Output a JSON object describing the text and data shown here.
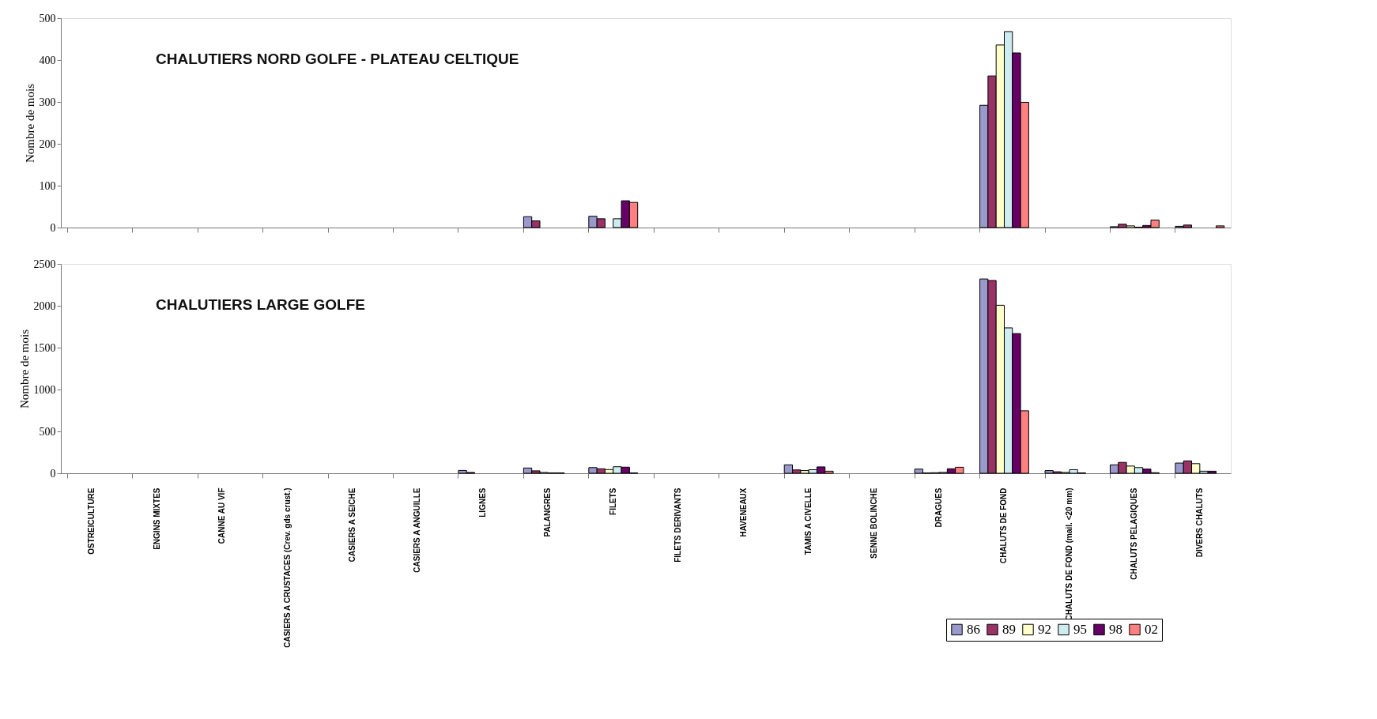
{
  "chart_data": [
    {
      "type": "bar",
      "title": "CHALUTIERS NORD GOLFE - PLATEAU CELTIQUE",
      "ylabel": "Nombre de mois",
      "ylim": [
        0,
        500
      ],
      "yticks": [
        0,
        100,
        200,
        300,
        400,
        500
      ],
      "tick_labels": "y",
      "legend": "bottom right",
      "categories": [
        "OSTREICULTURE",
        "ENGINS MIXTES",
        "CANNE AU VIF",
        "CASIERS A CRUSTACES (Crev. gds crust.)",
        "CASIERS A SEICHE",
        "CASIERS A ANGUILLE",
        "LIGNES",
        "PALANGRES",
        "FILETS",
        "FILETS DERIVANTS",
        "HAVENEAUX",
        "TAMIS A CIVELLE",
        "SENNE BOLINCHE",
        "DRAGUES",
        "CHALUTS DE FOND",
        "CHALUTS DE FOND (mail. <20 mm)",
        "CHALUTS PELAGIQUES",
        "DIVERS CHALUTS"
      ],
      "series": [
        {
          "name": "86",
          "color": "#9999cc",
          "values": [
            null,
            null,
            null,
            null,
            null,
            null,
            null,
            26,
            27,
            null,
            null,
            null,
            null,
            null,
            292,
            null,
            2,
            3
          ]
        },
        {
          "name": "89",
          "color": "#993366",
          "values": [
            null,
            null,
            null,
            null,
            null,
            null,
            null,
            16,
            21,
            null,
            null,
            null,
            null,
            null,
            362,
            null,
            8,
            6
          ]
        },
        {
          "name": "92",
          "color": "#ffffcc",
          "values": [
            null,
            null,
            null,
            null,
            null,
            null,
            null,
            null,
            null,
            null,
            null,
            null,
            null,
            null,
            436,
            null,
            4,
            null
          ]
        },
        {
          "name": "95",
          "color": "#ccecf0",
          "values": [
            null,
            null,
            null,
            null,
            null,
            null,
            null,
            null,
            21,
            null,
            null,
            null,
            null,
            null,
            468,
            null,
            1,
            null
          ]
        },
        {
          "name": "98",
          "color": "#660066",
          "values": [
            null,
            null,
            null,
            null,
            null,
            null,
            null,
            null,
            64,
            null,
            null,
            null,
            null,
            null,
            417,
            null,
            5,
            null
          ]
        },
        {
          "name": "02",
          "color": "#ff8080",
          "values": [
            null,
            null,
            null,
            null,
            null,
            null,
            null,
            null,
            60,
            null,
            null,
            null,
            null,
            null,
            299,
            null,
            18,
            4
          ]
        }
      ]
    },
    {
      "type": "bar",
      "title": "CHALUTIERS LARGE GOLFE",
      "ylabel": "Nombre de mois",
      "ylim": [
        0,
        2500
      ],
      "yticks": [
        0,
        500,
        1000,
        1500,
        2000,
        2500
      ],
      "legend": "bottom right",
      "categories": [
        "OSTREICULTURE",
        "ENGINS MIXTES",
        "CANNE AU VIF",
        "CASIERS A CRUSTACES (Crev. gds crust.)",
        "CASIERS A SEICHE",
        "CASIERS A ANGUILLE",
        "LIGNES",
        "PALANGRES",
        "FILETS",
        "FILETS DERIVANTS",
        "HAVENEAUX",
        "TAMIS A CIVELLE",
        "SENNE BOLINCHE",
        "DRAGUES",
        "CHALUTS DE FOND",
        "CHALUTS DE FOND (mail. <20 mm)",
        "CHALUTS PELAGIQUES",
        "DIVERS CHALUTS"
      ],
      "series": [
        {
          "name": "86",
          "color": "#9999cc",
          "values": [
            null,
            null,
            null,
            null,
            null,
            null,
            34,
            63,
            68,
            null,
            null,
            101,
            null,
            50,
            2320,
            32,
            101,
            122
          ]
        },
        {
          "name": "89",
          "color": "#993366",
          "values": [
            null,
            null,
            null,
            null,
            null,
            null,
            10,
            29,
            54,
            null,
            null,
            40,
            null,
            4,
            2302,
            18,
            130,
            148
          ]
        },
        {
          "name": "92",
          "color": "#ffffcc",
          "values": [
            null,
            null,
            null,
            null,
            null,
            null,
            null,
            10,
            44,
            null,
            null,
            32,
            null,
            7,
            2006,
            10,
            86,
            115
          ]
        },
        {
          "name": "95",
          "color": "#ccecf0",
          "values": [
            null,
            null,
            null,
            null,
            null,
            null,
            null,
            5,
            78,
            null,
            null,
            43,
            null,
            11,
            1736,
            43,
            68,
            25
          ]
        },
        {
          "name": "98",
          "color": "#660066",
          "values": [
            null,
            null,
            null,
            null,
            null,
            null,
            null,
            5,
            73,
            null,
            null,
            76,
            null,
            54,
            1668,
            5,
            50,
            25
          ]
        },
        {
          "name": "02",
          "color": "#ff8080",
          "values": [
            null,
            null,
            null,
            null,
            null,
            null,
            null,
            null,
            5,
            null,
            null,
            25,
            null,
            72,
            746,
            null,
            7,
            null
          ]
        }
      ]
    }
  ]
}
